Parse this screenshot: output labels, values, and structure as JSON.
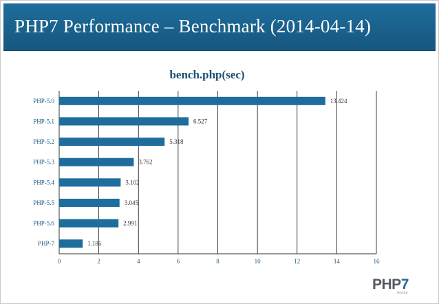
{
  "slide": {
    "title": "PHP7 Performance – Benchmark (2014-04-14)"
  },
  "logo": {
    "main": "PHP",
    "accent": "7",
    "sub": "inside"
  },
  "colors": {
    "header": "#1b6898",
    "bar": "#1f6d9c",
    "axis_text": "#1d5b85"
  },
  "chart_data": {
    "type": "bar",
    "orientation": "horizontal",
    "title": "bench.php(sec)",
    "categories": [
      "PHP-5.0",
      "PHP-5.1",
      "PHP-5.2",
      "PHP-5.3",
      "PHP-5.4",
      "PHP-5.5",
      "PHP-5.6",
      "PHP-7"
    ],
    "values": [
      13.424,
      6.527,
      5.318,
      3.762,
      3.102,
      3.045,
      2.991,
      1.186
    ],
    "value_labels": [
      "13.424",
      "6.527",
      "5.318",
      "3.762",
      "3.102",
      "3.045",
      "2.991",
      "1.186"
    ],
    "xlim": [
      0,
      16
    ],
    "xticks": [
      0,
      2,
      4,
      6,
      8,
      10,
      12,
      14,
      16
    ],
    "xlabel": "",
    "ylabel": "",
    "grid": true,
    "legend": "none"
  }
}
